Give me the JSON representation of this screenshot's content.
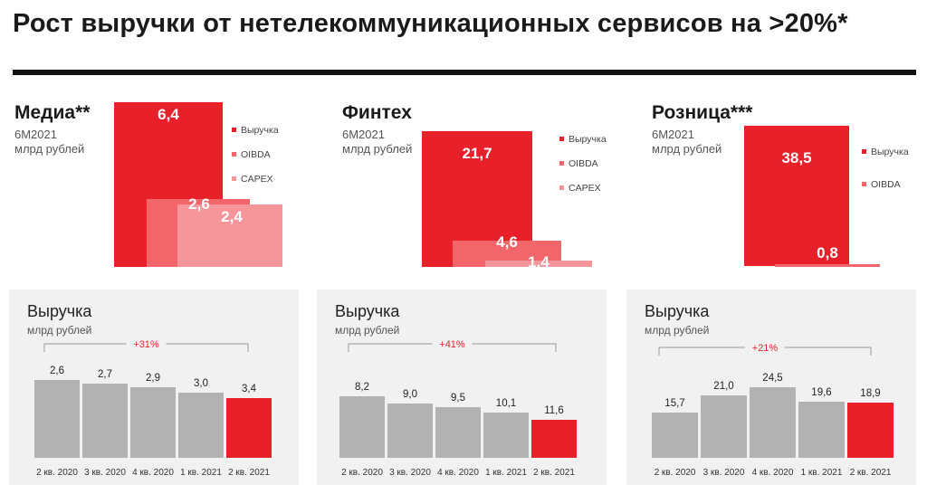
{
  "page": {
    "title": "Рост выручки от нетелекоммуникационных сервисов на >20%*"
  },
  "colors": {
    "revenue": "#e8202a",
    "oibda": "#f2666b",
    "capex": "#f6959a",
    "gray_bar": "#b2b2b2",
    "growth": "#e8202a"
  },
  "segments": [
    {
      "title": "Медиа**",
      "period": "6М2021",
      "unit": "млрд рублей",
      "legend": [
        "Выручка",
        "OIBDA",
        "CAPEX"
      ],
      "values": [
        6.4,
        2.6,
        2.4
      ],
      "value_labels": [
        "6,4",
        "2,6",
        "2,4"
      ]
    },
    {
      "title": "Финтех",
      "period": "6М2021",
      "unit": "млрд рублей",
      "legend": [
        "Выручка",
        "OIBDA",
        "CAPEX"
      ],
      "values": [
        21.7,
        4.6,
        1.4
      ],
      "value_labels": [
        "21,7",
        "4,6",
        "1,4"
      ]
    },
    {
      "title": "Розница***",
      "period": "6М2021",
      "unit": "млрд рублей",
      "legend": [
        "Выручка",
        "OIBDA"
      ],
      "values": [
        38.5,
        0.8
      ],
      "value_labels": [
        "38,5",
        "0,8"
      ]
    }
  ],
  "chart_data": [
    {
      "type": "bar",
      "title": "Выручка",
      "subtitle": "млрд рублей",
      "growth_label": "+31%",
      "categories": [
        "2 кв. 2020",
        "3 кв. 2020",
        "4 кв. 2020",
        "1 кв. 2021",
        "2 кв. 2021"
      ],
      "values": [
        2.6,
        2.7,
        2.9,
        3.0,
        3.4
      ],
      "value_labels": [
        "2,6",
        "2,7",
        "2,9",
        "3,0",
        "3,4"
      ],
      "highlight_index": 4
    },
    {
      "type": "bar",
      "title": "Выручка",
      "subtitle": "млрд рублей",
      "growth_label": "+41%",
      "categories": [
        "2 кв. 2020",
        "3 кв. 2020",
        "4 кв. 2020",
        "1 кв. 2021",
        "2 кв. 2021"
      ],
      "values": [
        8.2,
        9.0,
        9.5,
        10.1,
        11.6
      ],
      "value_labels": [
        "8,2",
        "9,0",
        "9,5",
        "10,1",
        "11,6"
      ],
      "highlight_index": 4
    },
    {
      "type": "bar",
      "title": "Выручка",
      "subtitle": "млрд рублей",
      "growth_label": "+21%",
      "categories": [
        "2 кв. 2020",
        "3 кв. 2020",
        "4 кв. 2020",
        "1 кв. 2021",
        "2 кв. 2021"
      ],
      "values": [
        15.7,
        21.0,
        24.5,
        19.6,
        18.9
      ],
      "value_labels": [
        "15,7",
        "21,0",
        "24,5",
        "19,6",
        "18,9"
      ],
      "highlight_index": 4
    }
  ]
}
